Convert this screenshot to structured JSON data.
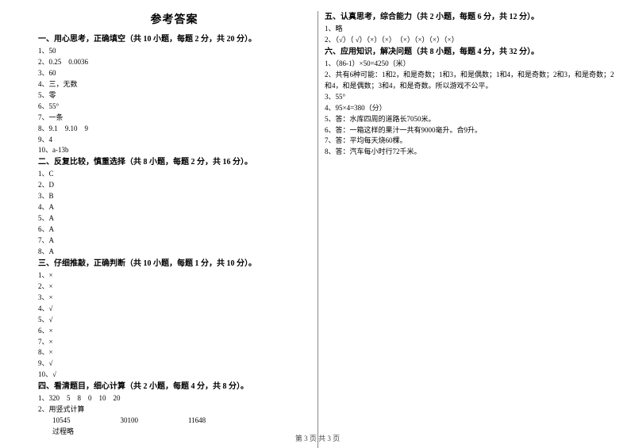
{
  "title": "参考答案",
  "sections": {
    "s1": {
      "head": "一、用心思考，正确填空（共 10 小题，每题 2 分，共 20 分）。",
      "items": [
        "1、50",
        "2、0.25　0.0036",
        "3、60",
        "4、三，无数",
        "5、零",
        "6、55°",
        "7、一条",
        "8、9.1　9.10　9",
        "9、4",
        "10、a-13b"
      ]
    },
    "s2": {
      "head": "二、反复比较，慎重选择（共 8 小题，每题 2 分，共 16 分）。",
      "items": [
        "1、C",
        "2、D",
        "3、B",
        "4、A",
        "5、A",
        "6、A",
        "7、A",
        "8、A"
      ]
    },
    "s3": {
      "head": "三、仔细推敲，正确判断（共 10 小题，每题 1 分，共 10 分）。",
      "items": [
        "1、×",
        "2、×",
        "3、×",
        "4、√",
        "5、√",
        "6、×",
        "7、×",
        "8、×",
        "9、√",
        "10、√"
      ]
    },
    "s4": {
      "head": "四、看清题目，细心计算（共 2 小题，每题 4 分，共 8 分）。",
      "items": [
        "1、320　5　8　0　10　20",
        "2、用竖式计算"
      ],
      "calc_row": "10545　　　　　　　30100　　　　　　　11648",
      "calc_note": "过程略"
    },
    "s5": {
      "head": "五、认真思考，综合能力（共 2 小题，每题 6 分，共 12 分）。",
      "items": [
        "1、略",
        "2、（√）（ √）（×）（×）　（×）（×）（×）（×）"
      ]
    },
    "s6": {
      "head": "六、应用知识，解决问题（共 8 小题，每题 4 分，共 32 分）。",
      "items": [
        "1、（86-1）×50=4250（米）",
        "2、共有6种可能：1和2，和是奇数；1和3，和是偶数；1和4，和是奇数；2和3，和是奇数；2",
        "和4，和是偶数；3和4，和是奇数。所以游戏不公平。",
        "3、55°",
        "4、95×4=380（分）",
        "5、答：水库四周的道路长7050米。",
        "6、答：一箱这样的果汁一共有9000毫升。合9升。",
        "7、答：平均每天烧60棵。",
        "8、答：汽车每小时行72千米。"
      ]
    }
  },
  "footer": "第 3 页 共 3 页"
}
